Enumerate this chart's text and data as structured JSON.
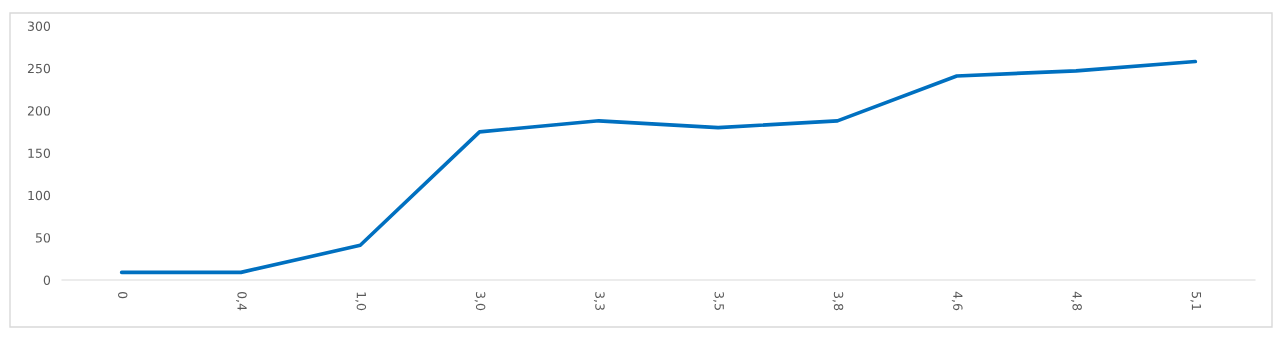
{
  "chart_data": {
    "type": "line",
    "categories": [
      "0",
      "0,4",
      "1,0",
      "3,0",
      "3,3",
      "3,5",
      "3,8",
      "4,6",
      "4,8",
      "5,1"
    ],
    "series": [
      {
        "color": "#0070c0",
        "values": [
          9,
          9,
          41,
          175,
          188,
          180,
          188,
          241,
          247,
          258
        ]
      }
    ],
    "ylim": [
      0,
      300
    ],
    "yticks": [
      0,
      50,
      100,
      150,
      200,
      250,
      300
    ],
    "grid": false,
    "marker": "none",
    "line_style": "solid"
  }
}
